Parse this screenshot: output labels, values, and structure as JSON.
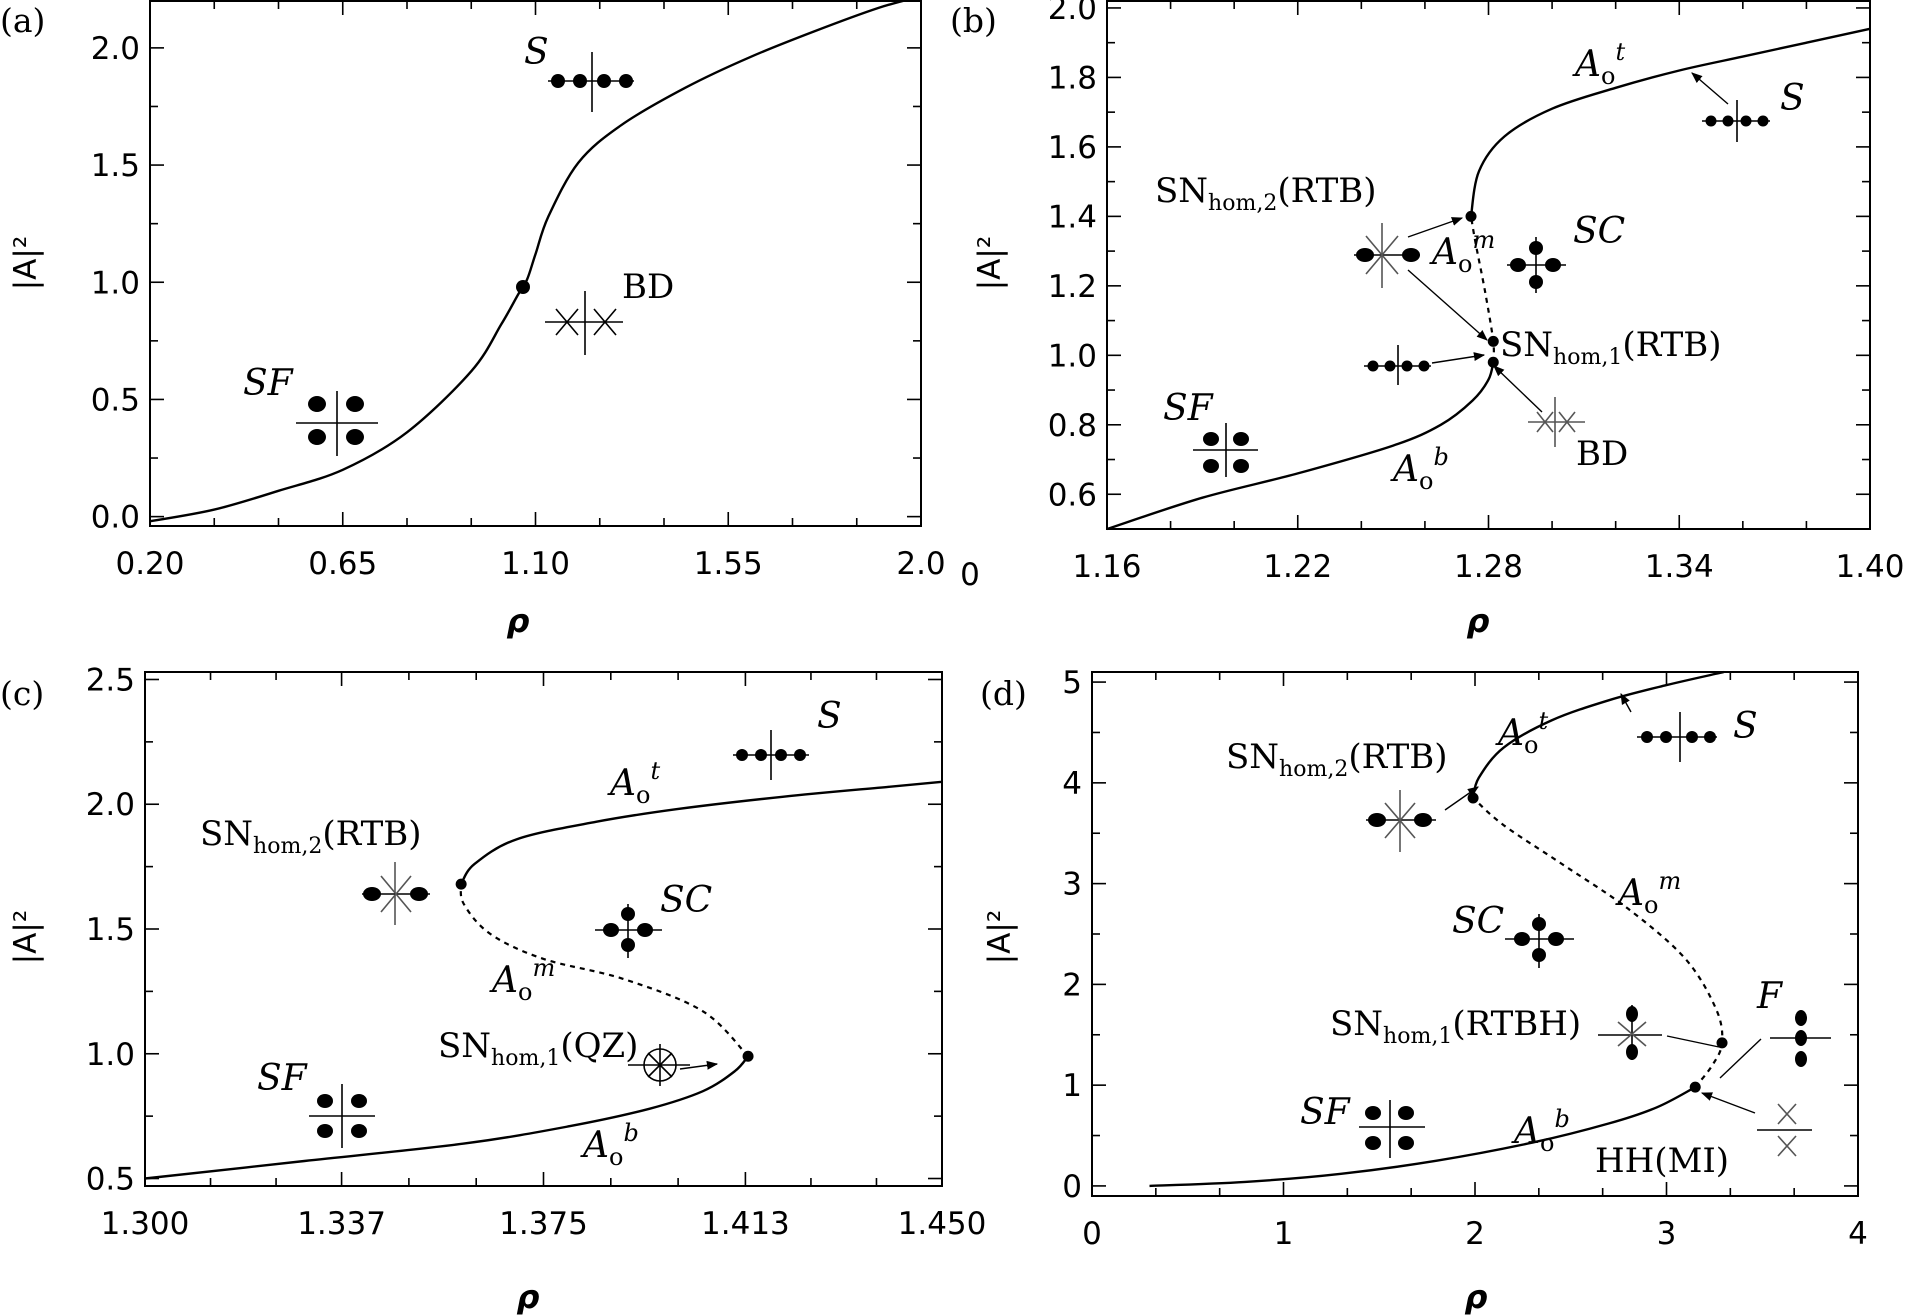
{
  "chart_data": [
    {
      "type": "line",
      "panel_label": "(a)",
      "xlabel": "ρ",
      "ylabel": "|A|²",
      "xlim": [
        0.2,
        2.0
      ],
      "ylim": [
        -0.04,
        2.2
      ],
      "xticks": [
        0.2,
        0.65,
        1.1,
        1.55,
        2.0
      ],
      "xtick_labels": [
        "0.20",
        "0.65",
        "1.10",
        "1.55",
        "2.0"
      ],
      "yticks": [
        0.0,
        0.5,
        1.0,
        1.5,
        2.0
      ],
      "ytick_labels": [
        "0.0",
        "0.5",
        "1.0",
        "1.5",
        "2.0"
      ],
      "series": [
        {
          "style": "solid",
          "x": [
            0.2,
            0.35,
            0.5,
            0.65,
            0.8,
            0.95,
            1.02,
            1.06,
            1.08,
            1.1,
            1.13,
            1.2,
            1.3,
            1.45,
            1.6,
            1.75,
            1.9,
            2.0
          ],
          "y": [
            -0.02,
            0.03,
            0.11,
            0.2,
            0.36,
            0.62,
            0.82,
            0.95,
            1.01,
            1.12,
            1.28,
            1.51,
            1.67,
            1.83,
            1.96,
            2.07,
            2.17,
            2.22
          ]
        }
      ],
      "points": [
        {
          "x": 1.08,
          "y": 1.01
        }
      ],
      "annotations": [
        {
          "text": "S",
          "x": 1.14,
          "y": 2.02,
          "italic": true
        },
        {
          "text": "BD",
          "x": 1.36,
          "y": 0.97
        },
        {
          "text": "SF",
          "x": 0.4,
          "y": 0.57,
          "italic": true
        }
      ]
    },
    {
      "type": "line",
      "panel_label": "(b)",
      "xlabel": "ρ",
      "ylabel": "|A|²",
      "xlim": [
        1.16,
        1.4
      ],
      "ylim": [
        0.5,
        2.02
      ],
      "xticks": [
        1.16,
        1.22,
        1.28,
        1.34,
        1.4
      ],
      "xtick_labels": [
        "1.16",
        "1.22",
        "1.28",
        "1.34",
        "1.40"
      ],
      "extra_left_tick_label": "0",
      "yticks": [
        0.6,
        0.8,
        1.0,
        1.2,
        1.4,
        1.6,
        1.8,
        2.0
      ],
      "ytick_labels": [
        "0.6",
        "0.8",
        "1.0",
        "1.2",
        "1.4",
        "1.6",
        "1.8",
        "2.0"
      ],
      "series": [
        {
          "name": "Ao b",
          "style": "solid",
          "x": [
            1.16,
            1.19,
            1.22,
            1.25,
            1.265,
            1.275,
            1.28,
            1.2815
          ],
          "y": [
            0.5,
            0.59,
            0.66,
            0.74,
            0.8,
            0.87,
            0.93,
            0.98
          ]
        },
        {
          "name": "Ao m",
          "style": "dashed",
          "x": [
            1.2815,
            1.2815,
            1.279,
            1.276,
            1.2745
          ],
          "y": [
            0.98,
            1.04,
            1.18,
            1.32,
            1.4
          ]
        },
        {
          "name": "Ao t",
          "style": "solid",
          "x": [
            1.2745,
            1.277,
            1.285,
            1.3,
            1.32,
            1.34,
            1.36,
            1.38,
            1.4
          ],
          "y": [
            1.4,
            1.53,
            1.63,
            1.71,
            1.77,
            1.82,
            1.86,
            1.9,
            1.94
          ]
        }
      ],
      "points": [
        {
          "x": 1.2745,
          "y": 1.4
        },
        {
          "x": 1.2815,
          "y": 1.04
        },
        {
          "x": 1.2815,
          "y": 0.98
        }
      ],
      "annotations": [
        {
          "text": "SNhom,2(RTB)",
          "x": 1.19,
          "y": 1.44
        },
        {
          "text": "SNhom,1(RTB)",
          "x": 1.285,
          "y": 1.03
        },
        {
          "text": "SC",
          "x": 1.305,
          "y": 1.32,
          "italic": true
        },
        {
          "text": "S",
          "x": 1.362,
          "y": 1.7,
          "italic": true
        },
        {
          "text": "BD",
          "x": 1.3,
          "y": 0.74
        },
        {
          "text": "SF",
          "x": 1.18,
          "y": 0.83,
          "italic": true
        }
      ]
    },
    {
      "type": "line",
      "panel_label": "(c)",
      "xlabel": "ρ",
      "ylabel": "|A|²",
      "xlim": [
        1.3,
        1.45
      ],
      "ylim": [
        0.47,
        2.53
      ],
      "xticks": [
        1.3,
        1.337,
        1.375,
        1.413,
        1.45
      ],
      "xtick_labels": [
        "1.300",
        "1.337",
        "1.375",
        "1.413",
        "1.450"
      ],
      "yticks": [
        0.5,
        1.0,
        1.5,
        2.0,
        2.5
      ],
      "ytick_labels": [
        "0.5",
        "1.0",
        "1.5",
        "2.0",
        "2.5"
      ],
      "series": [
        {
          "name": "Ao b",
          "style": "solid",
          "x": [
            1.3,
            1.33,
            1.36,
            1.38,
            1.395,
            1.405,
            1.411,
            1.4135
          ],
          "y": [
            0.5,
            0.57,
            0.64,
            0.71,
            0.78,
            0.85,
            0.93,
            0.99
          ]
        },
        {
          "name": "Ao m",
          "style": "dashed",
          "x": [
            1.4135,
            1.405,
            1.39,
            1.375,
            1.365,
            1.36,
            1.3595
          ],
          "y": [
            0.99,
            1.17,
            1.3,
            1.38,
            1.48,
            1.6,
            1.68
          ]
        },
        {
          "name": "Ao t",
          "style": "solid",
          "x": [
            1.3595,
            1.362,
            1.37,
            1.385,
            1.4,
            1.42,
            1.44,
            1.45
          ],
          "y": [
            1.68,
            1.76,
            1.86,
            1.93,
            1.98,
            2.03,
            2.07,
            2.09
          ]
        }
      ],
      "points": [
        {
          "x": 1.3595,
          "y": 1.68
        },
        {
          "x": 1.4135,
          "y": 0.99
        }
      ],
      "annotations": [
        {
          "text": "SNhom,2(RTB)",
          "x": 1.31,
          "y": 1.85
        },
        {
          "text": "SNhom,1(QZ)",
          "x": 1.36,
          "y": 1.03
        },
        {
          "text": "SC",
          "x": 1.405,
          "y": 1.6,
          "italic": true
        },
        {
          "text": "S",
          "x": 1.428,
          "y": 2.3,
          "italic": true
        },
        {
          "text": "SF",
          "x": 1.32,
          "y": 0.87,
          "italic": true
        }
      ]
    },
    {
      "type": "line",
      "panel_label": "(d)",
      "xlabel": "ρ",
      "ylabel": "|A|²",
      "xlim": [
        0,
        4
      ],
      "ylim": [
        -0.1,
        5.1
      ],
      "xticks": [
        0,
        1,
        2,
        3,
        4
      ],
      "xtick_labels": [
        "0",
        "1",
        "2",
        "3",
        "4"
      ],
      "yticks": [
        0,
        1,
        2,
        3,
        4,
        5
      ],
      "ytick_labels": [
        "0",
        "1",
        "2",
        "3",
        "4",
        "5"
      ],
      "series": [
        {
          "name": "Ao b",
          "style": "solid",
          "x": [
            0.3,
            0.8,
            1.3,
            1.8,
            2.3,
            2.7,
            2.95,
            3.15
          ],
          "y": [
            0.0,
            0.04,
            0.12,
            0.25,
            0.43,
            0.62,
            0.78,
            0.98
          ]
        },
        {
          "name": "Ao m",
          "style": "dashed",
          "x": [
            3.15,
            3.24,
            3.29,
            3.26,
            3.1,
            2.8,
            2.45,
            2.15,
            1.99
          ],
          "y": [
            0.98,
            1.2,
            1.42,
            1.75,
            2.25,
            2.75,
            3.2,
            3.58,
            3.85
          ]
        },
        {
          "name": "Ao t",
          "style": "solid",
          "x": [
            1.99,
            2.02,
            2.15,
            2.4,
            2.7,
            3.0,
            3.3
          ],
          "y": [
            3.85,
            4.05,
            4.35,
            4.62,
            4.82,
            4.97,
            5.1
          ]
        }
      ],
      "points": [
        {
          "x": 1.99,
          "y": 3.85
        },
        {
          "x": 3.29,
          "y": 1.42
        },
        {
          "x": 3.15,
          "y": 0.98
        }
      ],
      "annotations": [
        {
          "text": "SNhom,2(RTB)",
          "x": 1.0,
          "y": 4.05
        },
        {
          "text": "SNhom,1(RTBH)",
          "x": 1.15,
          "y": 1.55
        },
        {
          "text": "HH(MI)",
          "x": 2.6,
          "y": 0.2
        },
        {
          "text": "SC",
          "x": 2.0,
          "y": 2.6,
          "italic": true
        },
        {
          "text": "S",
          "x": 3.3,
          "y": 4.45,
          "italic": true
        },
        {
          "text": "F",
          "x": 3.45,
          "y": 1.85,
          "italic": true
        },
        {
          "text": "SF",
          "x": 1.15,
          "y": 0.7,
          "italic": true
        }
      ]
    }
  ]
}
